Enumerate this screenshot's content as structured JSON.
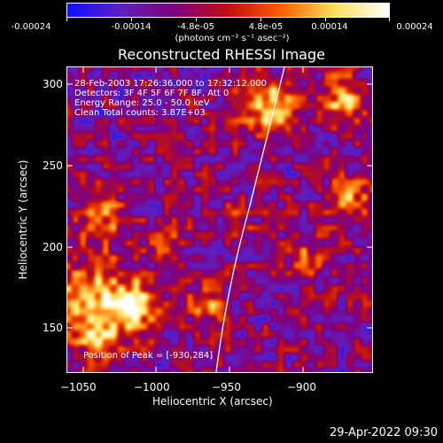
{
  "colorbar": {
    "tick_labels": [
      "-0.00024",
      "-0.00014",
      "-4.8e-05",
      "4.8e-05",
      "0.00014",
      "0.00024"
    ],
    "units": "(photons cm⁻² s⁻¹ asec⁻²)",
    "colors": [
      "#1010ff",
      "#6020c0",
      "#800080",
      "#c01010",
      "#ff6000",
      "#ffe060",
      "#ffffff"
    ]
  },
  "title": "Reconstructed RHESSI Image",
  "info": {
    "line1": "28-Feb-2003 17:26:36.000 to 17:32:12.000",
    "line2": "Detectors: 3F 4F 5F 6F 7F 8F, Att 0",
    "line3": "Energy Range: 25.0 - 50.0 keV",
    "line4": "Clean     Total counts: 3.87E+03",
    "peak": "Position of Peak = [-930,284]"
  },
  "axes": {
    "xlabel": "Heliocentric X (arcsec)",
    "ylabel": "Heliocentric Y (arcsec)",
    "xticks": [
      "−1050",
      "−1000",
      "−950",
      "−900"
    ],
    "yticks": [
      "300",
      "250",
      "200",
      "150"
    ]
  },
  "timestamp": "29-Apr-2022 09:30"
}
